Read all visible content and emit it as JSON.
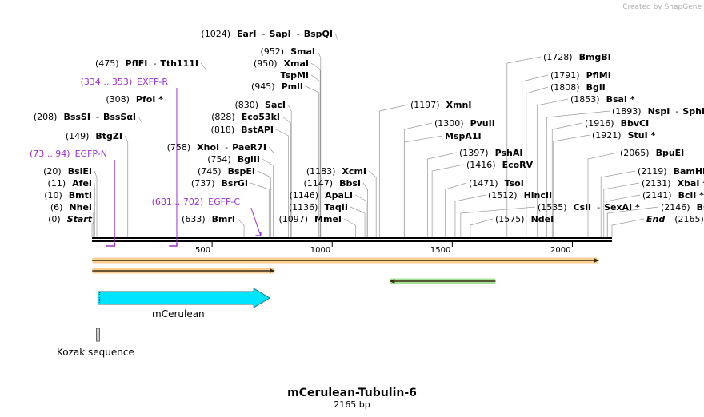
{
  "credit": "Created by SnapGene",
  "title": "mCerulean-Tubulin-6",
  "length_label": "2165 bp",
  "sequence_length": 2165,
  "colors": {
    "primer": "#9b30d0",
    "mcerulean": "#00e5ff",
    "orange_feature": "#f4a838",
    "green_feature": "#5ec844",
    "backbone": "#000000"
  },
  "ticks": [
    "500",
    "1000",
    "1500",
    "2000"
  ],
  "enzymes": [
    {
      "pos": 0,
      "label_pos": "(0)",
      "names": [
        "Start"
      ],
      "special": "start"
    },
    {
      "pos": 6,
      "label_pos": "(6)",
      "names": [
        "NheI"
      ]
    },
    {
      "pos": 10,
      "label_pos": "(10)",
      "names": [
        "BmtI"
      ]
    },
    {
      "pos": 11,
      "label_pos": "(11)",
      "names": [
        "AfeI"
      ]
    },
    {
      "pos": 20,
      "label_pos": "(20)",
      "names": [
        "BsiEI"
      ]
    },
    {
      "pos": 149,
      "label_pos": "(149)",
      "names": [
        "BtgZI"
      ]
    },
    {
      "pos": 208,
      "label_pos": "(208)",
      "names": [
        "BssSI",
        "BssSαI"
      ]
    },
    {
      "pos": 308,
      "label_pos": "(308)",
      "names": [
        "PfoI *"
      ]
    },
    {
      "pos": 475,
      "label_pos": "(475)",
      "names": [
        "PflFI",
        "Tth111I"
      ]
    },
    {
      "pos": 633,
      "label_pos": "(633)",
      "names": [
        "BmrI"
      ]
    },
    {
      "pos": 737,
      "label_pos": "(737)",
      "names": [
        "BsrGI"
      ]
    },
    {
      "pos": 745,
      "label_pos": "(745)",
      "names": [
        "BspEI"
      ]
    },
    {
      "pos": 754,
      "label_pos": "(754)",
      "names": [
        "BglII"
      ]
    },
    {
      "pos": 758,
      "label_pos": "(758)",
      "names": [
        "XhoI",
        "PaeR7I"
      ]
    },
    {
      "pos": 818,
      "label_pos": "(818)",
      "names": [
        "BstAPI"
      ]
    },
    {
      "pos": 828,
      "label_pos": "(828)",
      "names": [
        "Eco53kI"
      ]
    },
    {
      "pos": 830,
      "label_pos": "(830)",
      "names": [
        "SacI"
      ]
    },
    {
      "pos": 945,
      "label_pos": "(945)",
      "names": [
        "PmlI"
      ]
    },
    {
      "pos": 950,
      "label_pos": "(950)",
      "names": [
        "XmaI"
      ]
    },
    {
      "pos": 950,
      "label_pos": "",
      "names": [
        "TspMI"
      ]
    },
    {
      "pos": 952,
      "label_pos": "(952)",
      "names": [
        "SmaI"
      ]
    },
    {
      "pos": 1024,
      "label_pos": "(1024)",
      "names": [
        "EarI",
        "SapI",
        "BspQI"
      ]
    },
    {
      "pos": 1097,
      "label_pos": "(1097)",
      "names": [
        "MmeI"
      ]
    },
    {
      "pos": 1136,
      "label_pos": "(1136)",
      "names": [
        "TaqII"
      ]
    },
    {
      "pos": 1146,
      "label_pos": "(1146)",
      "names": [
        "ApaLI"
      ]
    },
    {
      "pos": 1147,
      "label_pos": "(1147)",
      "names": [
        "BbsI"
      ]
    },
    {
      "pos": 1183,
      "label_pos": "(1183)",
      "names": [
        "XcmI"
      ]
    },
    {
      "pos": 1197,
      "label_pos": "(1197)",
      "names": [
        "XmnI"
      ]
    },
    {
      "pos": 1300,
      "label_pos": "(1300)",
      "names": [
        "PvuII"
      ]
    },
    {
      "pos": 1300,
      "label_pos": "",
      "names": [
        "MspA1I"
      ]
    },
    {
      "pos": 1397,
      "label_pos": "(1397)",
      "names": [
        "PshAI"
      ]
    },
    {
      "pos": 1416,
      "label_pos": "(1416)",
      "names": [
        "EcoRV"
      ]
    },
    {
      "pos": 1471,
      "label_pos": "(1471)",
      "names": [
        "TsoI"
      ]
    },
    {
      "pos": 1512,
      "label_pos": "(1512)",
      "names": [
        "HincII"
      ]
    },
    {
      "pos": 1535,
      "label_pos": "(1535)",
      "names": [
        "CsiI",
        "SexAI *"
      ]
    },
    {
      "pos": 1575,
      "label_pos": "(1575)",
      "names": [
        "NdeI"
      ]
    },
    {
      "pos": 1728,
      "label_pos": "(1728)",
      "names": [
        "BmgBI"
      ]
    },
    {
      "pos": 1791,
      "label_pos": "(1791)",
      "names": [
        "PflMI"
      ]
    },
    {
      "pos": 1808,
      "label_pos": "(1808)",
      "names": [
        "BglI"
      ]
    },
    {
      "pos": 1853,
      "label_pos": "(1853)",
      "names": [
        "BsaI *"
      ]
    },
    {
      "pos": 1893,
      "label_pos": "(1893)",
      "names": [
        "NspI",
        "SphI"
      ]
    },
    {
      "pos": 1916,
      "label_pos": "(1916)",
      "names": [
        "BbvCI"
      ]
    },
    {
      "pos": 1921,
      "label_pos": "(1921)",
      "names": [
        "StuI *"
      ]
    },
    {
      "pos": 2065,
      "label_pos": "(2065)",
      "names": [
        "BpuEI"
      ]
    },
    {
      "pos": 2119,
      "label_pos": "(2119)",
      "names": [
        "BamHI"
      ]
    },
    {
      "pos": 2131,
      "label_pos": "(2131)",
      "names": [
        "XbaI *"
      ]
    },
    {
      "pos": 2141,
      "label_pos": "(2141)",
      "names": [
        "BclI *"
      ]
    },
    {
      "pos": 2146,
      "label_pos": "(2146)",
      "names": [
        "BsaBI *"
      ]
    },
    {
      "pos": 2165,
      "label_pos": "(2165)",
      "names": [
        "End"
      ],
      "special": "end"
    }
  ],
  "primers": [
    {
      "range": "(73 .. 94)",
      "name": "EGFP-N",
      "start": 73,
      "end": 94
    },
    {
      "range": "(334 .. 353)",
      "name": "EXFP-R",
      "start": 334,
      "end": 353
    },
    {
      "range": "(681 .. 702)",
      "name": "EGFP-C",
      "start": 681,
      "end": 702
    }
  ],
  "features": [
    {
      "name": "",
      "start": 1,
      "end": 2110,
      "direction": "forward",
      "color_key": "orange_feature"
    },
    {
      "name": "",
      "start": 1,
      "end": 760,
      "direction": "forward",
      "color_key": "orange_feature"
    },
    {
      "name": "",
      "start": 1240,
      "end": 1680,
      "direction": "reverse",
      "color_key": "green_feature"
    },
    {
      "name": "mCerulean",
      "start": 25,
      "end": 740,
      "direction": "forward",
      "color_key": "mcerulean"
    },
    {
      "name": "Kozak sequence",
      "start": 20,
      "end": 32,
      "direction": "none",
      "color_key": "mcerulean"
    }
  ]
}
